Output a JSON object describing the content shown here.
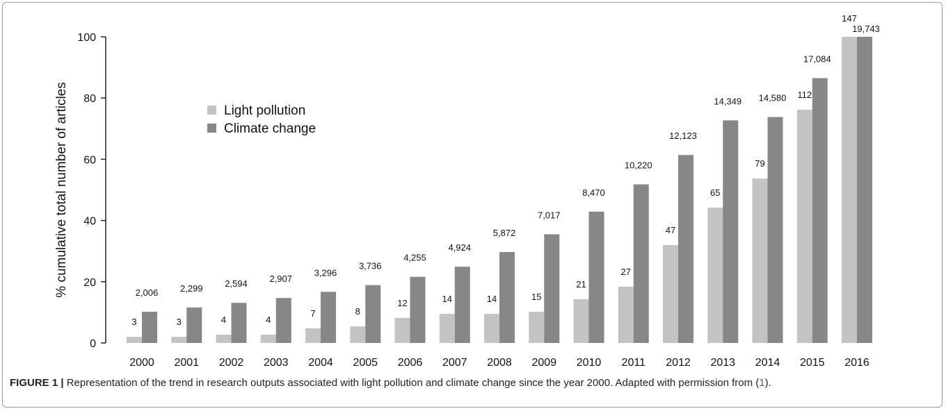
{
  "chart_data": {
    "type": "bar",
    "ylabel": "% cumulative total number of articles",
    "xlabel": "",
    "ylim": [
      0,
      100
    ],
    "yticks": [
      0,
      20,
      40,
      60,
      80,
      100
    ],
    "grid": false,
    "legend_position": "top-left",
    "categories": [
      "2000",
      "2001",
      "2002",
      "2003",
      "2004",
      "2005",
      "2006",
      "2007",
      "2008",
      "2009",
      "2010",
      "2011",
      "2012",
      "2013",
      "2014",
      "2015",
      "2016"
    ],
    "series": [
      {
        "name": "Light pollution",
        "color": "#c3c3c3",
        "values": [
          2.0,
          2.0,
          2.7,
          2.7,
          4.8,
          5.4,
          8.2,
          9.5,
          9.5,
          10.2,
          14.3,
          18.4,
          32.0,
          44.2,
          53.7,
          76.2,
          100
        ],
        "labels": [
          "3",
          "3",
          "4",
          "4",
          "7",
          "8",
          "12",
          "14",
          "14",
          "15",
          "21",
          "27",
          "47",
          "65",
          "79",
          "112",
          "147"
        ]
      },
      {
        "name": "Climate change",
        "color": "#878787",
        "values": [
          10.2,
          11.6,
          13.1,
          14.7,
          16.7,
          18.9,
          21.6,
          24.9,
          29.7,
          35.5,
          42.9,
          51.8,
          61.4,
          72.7,
          73.8,
          86.5,
          100
        ],
        "labels": [
          "2,006",
          "2,299",
          "2,594",
          "2,907",
          "3,296",
          "3,736",
          "4,255",
          "4,924",
          "5,872",
          "7,017",
          "8,470",
          "10,220",
          "12,123",
          "14,349",
          "14,580",
          "17,084",
          "19,743"
        ]
      }
    ]
  },
  "caption": {
    "label": "FIGURE 1 |",
    "text": " Representation of the trend in research outputs associated with light pollution and climate change since the year 2000. Adapted with permission from (",
    "ref": "1",
    "end": ")."
  }
}
